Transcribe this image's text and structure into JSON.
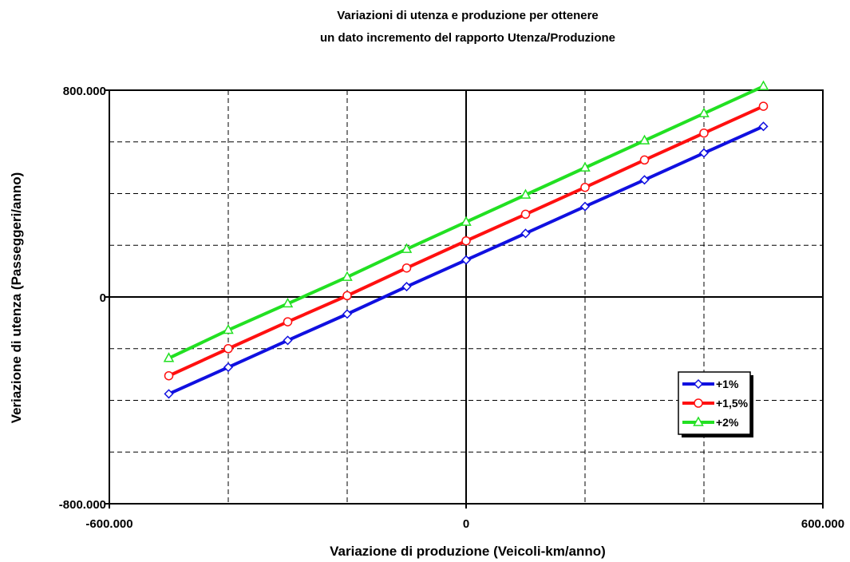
{
  "chart_data": {
    "type": "line",
    "title_line1": "Variazioni di utenza e produzione per ottenere",
    "title_line2": "un dato incremento del rapporto Utenza/Produzione",
    "xlabel": "Variazione di produzione (Veicoli-km/anno)",
    "ylabel": "Veriazione di utenza (Passeggeri/anno)",
    "xlim": [
      -600000,
      600000
    ],
    "ylim": [
      -800000,
      800000
    ],
    "x_tick_labels": [
      {
        "value": -600000,
        "label": "-600.000"
      },
      {
        "value": 0,
        "label": "0"
      },
      {
        "value": 600000,
        "label": "600.000"
      }
    ],
    "y_tick_labels": [
      {
        "value": 800000,
        "label": "800.000"
      },
      {
        "value": 0,
        "label": "0"
      },
      {
        "value": -800000,
        "label": "-800.000"
      }
    ],
    "x_gridlines": [
      -400000,
      -200000,
      200000,
      400000
    ],
    "y_gridlines": [
      -600000,
      -400000,
      -200000,
      200000,
      400000,
      600000
    ],
    "grid": "dashed",
    "legend_position": "lower-right",
    "x": [
      -500000,
      -400000,
      -300000,
      -200000,
      -100000,
      0,
      100000,
      200000,
      300000,
      400000,
      500000
    ],
    "series": [
      {
        "name": "+1%",
        "color": "#1010e0",
        "marker": "diamond",
        "x": [
          -500000,
          -400000,
          -300000,
          -200000,
          -100000,
          0,
          100000,
          200000,
          300000,
          400000,
          500000
        ],
        "values": [
          -375000,
          -272000,
          -168000,
          -66000,
          40000,
          143000,
          246000,
          350000,
          453000,
          557000,
          660000
        ]
      },
      {
        "name": "+1,5%",
        "color": "#ff1010",
        "marker": "circle",
        "x": [
          -500000,
          -400000,
          -300000,
          -200000,
          -100000,
          0,
          100000,
          200000,
          300000,
          400000,
          500000
        ],
        "values": [
          -305000,
          -200000,
          -96000,
          5000,
          112000,
          217000,
          320000,
          424000,
          530000,
          634000,
          738000
        ]
      },
      {
        "name": "+2%",
        "color": "#22e022",
        "marker": "triangle",
        "x": [
          -500000,
          -400000,
          -300000,
          -200000,
          -100000,
          0,
          100000,
          200000,
          300000,
          400000,
          500000
        ],
        "values": [
          -237000,
          -128000,
          -26000,
          77000,
          185000,
          290000,
          395000,
          500000,
          605000,
          710000,
          815000
        ]
      }
    ]
  }
}
